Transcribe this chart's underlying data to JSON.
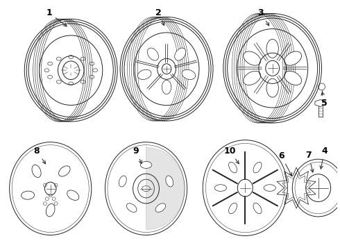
{
  "background_color": "#ffffff",
  "line_color": "#222222",
  "label_color": "#000000",
  "fig_w": 4.9,
  "fig_h": 3.6,
  "dpi": 100
}
